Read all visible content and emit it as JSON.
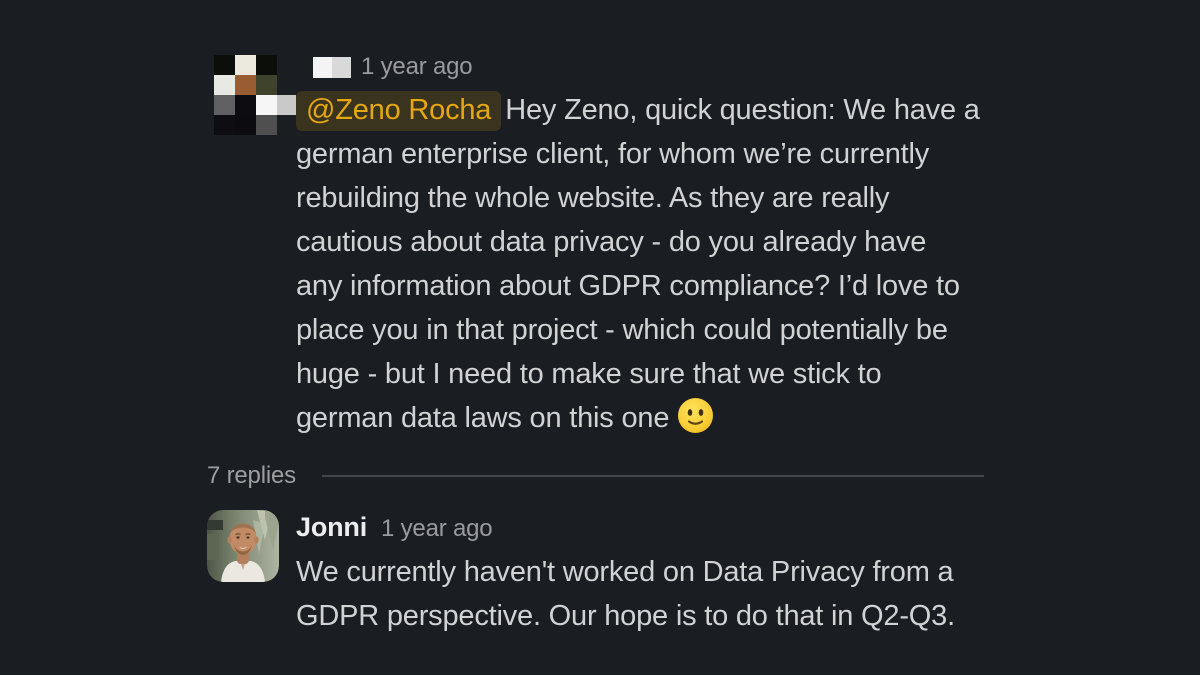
{
  "theme": {
    "background": "#1A1D21",
    "text_primary": "#D1D2D3",
    "text_secondary": "#9A9B9E",
    "mention_text": "#E5A712",
    "mention_background": "#3A331E",
    "divider": "#43464A"
  },
  "root_message": {
    "timestamp": "1 year ago",
    "mention": "@Zeno Rocha",
    "lines": [
      "Hey Zeno, quick question: We have a",
      "german enterprise client, for whom we’re currently",
      "rebuilding the whole website. As they are really",
      "cautious about data privacy - do you already have",
      "any information about GDPR compliance? I’d love to",
      "place you in that project - which could potentially be",
      "huge - but I need to make sure that we stick to",
      "german data laws on this one"
    ],
    "emoji_name": "slightly-smiling-face",
    "avatar_mosaic": {
      "cols": [
        21,
        21,
        21,
        19
      ],
      "rows": [
        20,
        20,
        20,
        20
      ],
      "cells": [
        [
          "#0B0E09",
          "#ECEADF|dark",
          "#0C0E0A",
          ""
        ],
        [
          "#E9E9E4",
          "#9A5C32",
          "#3F432C|green",
          ""
        ],
        [
          "#606062",
          "#0D0D11|light",
          "#F6F6F6",
          "#C9C9C9|dark"
        ],
        [
          "#0E0E12|light",
          "#0C0C10",
          "#4F4F4F|light",
          ""
        ]
      ]
    },
    "author_redaction": [
      "#F4F4F4",
      "#D9D9D9|dark"
    ]
  },
  "thread": {
    "replies_label": "7 replies"
  },
  "reply": {
    "author": "Jonni",
    "timestamp": "1 year ago",
    "lines": [
      "We currently haven't worked on Data Privacy from a",
      "GDPR perspective. Our hope is to do that in Q2-Q3."
    ]
  }
}
